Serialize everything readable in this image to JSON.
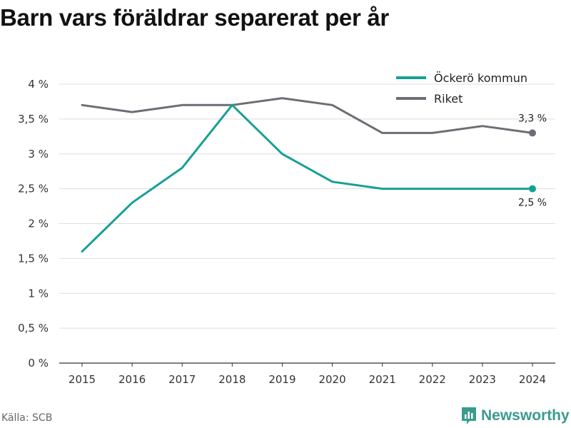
{
  "title": "Barn vars föräldrar separerat per år",
  "source": "Källa: SCB",
  "brand": "Newsworthy",
  "colors": {
    "ockero": "#16a096",
    "riket": "#6d6d75",
    "grid": "#dddddd",
    "brand": "#3a9b8e"
  },
  "chart_data": {
    "type": "line",
    "x": [
      2015,
      2016,
      2017,
      2018,
      2019,
      2020,
      2021,
      2022,
      2023,
      2024
    ],
    "series": [
      {
        "name": "Öckerö kommun",
        "values": [
          1.6,
          2.3,
          2.8,
          3.7,
          3.0,
          2.6,
          2.5,
          2.5,
          2.5,
          2.5
        ],
        "color": "#16a096",
        "end_label": "2,5 %"
      },
      {
        "name": "Riket",
        "values": [
          3.7,
          3.6,
          3.7,
          3.7,
          3.8,
          3.7,
          3.3,
          3.3,
          3.4,
          3.3
        ],
        "color": "#6d6d75",
        "end_label": "3,3 %"
      }
    ],
    "y_ticks": [
      0,
      0.5,
      1,
      1.5,
      2,
      2.5,
      3,
      3.5,
      4
    ],
    "y_tick_labels": [
      "0 %",
      "0,5 %",
      "1 %",
      "1,5 %",
      "2 %",
      "2,5 %",
      "3 %",
      "3,5 %",
      "4 %"
    ],
    "ylim": [
      0,
      4
    ],
    "grid": true,
    "legend_position": "top-right"
  }
}
